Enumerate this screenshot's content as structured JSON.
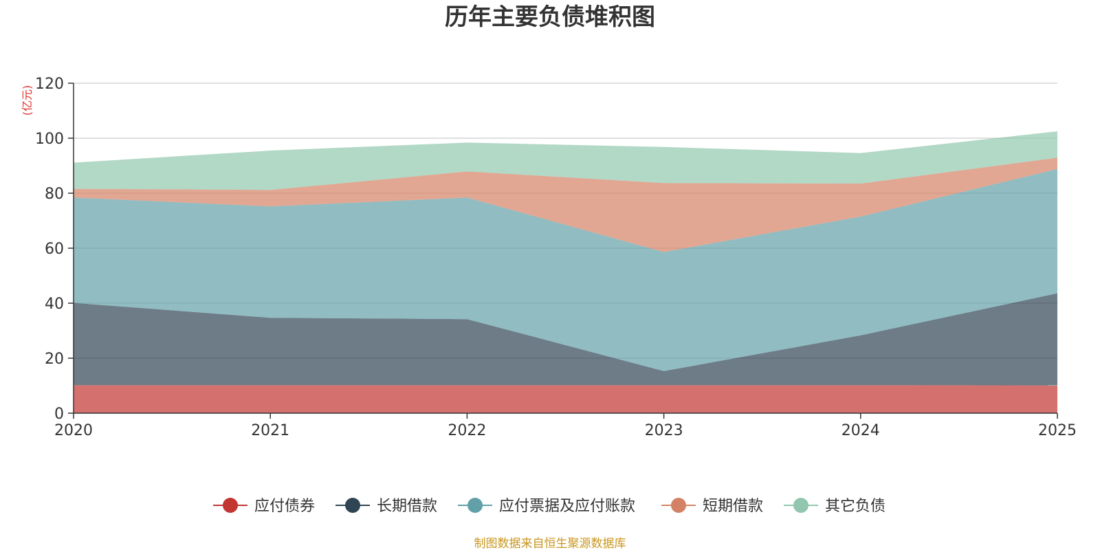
{
  "chart_data": {
    "type": "area",
    "stacked": true,
    "title": "历年主要负债堆积图",
    "unit_label": "(亿元)",
    "x": [
      "2020",
      "2021",
      "2022",
      "2023",
      "2024",
      "2025"
    ],
    "ylim": [
      0,
      120
    ],
    "yticks": [
      0,
      20,
      40,
      60,
      80,
      100,
      120
    ],
    "grid": true,
    "legend_position": "bottom",
    "series": [
      {
        "name": "应付债券",
        "color": "#c23531",
        "values": [
          10.2,
          10.2,
          10.2,
          10.2,
          10.2,
          10.1
        ]
      },
      {
        "name": "长期借款",
        "color": "#2f4554",
        "values": [
          29.9,
          24.5,
          24.0,
          5.1,
          18.1,
          33.5
        ]
      },
      {
        "name": "应付票据及应付账款",
        "color": "#61a0a8",
        "values": [
          38.3,
          40.5,
          44.2,
          43.3,
          43.2,
          45.2
        ]
      },
      {
        "name": "短期借款",
        "color": "#d48265",
        "values": [
          3.2,
          6.0,
          9.5,
          25.1,
          12.0,
          4.1
        ]
      },
      {
        "name": "其它负债",
        "color": "#91c7ae",
        "values": [
          9.5,
          14.3,
          10.5,
          13.1,
          11.1,
          9.6
        ]
      }
    ],
    "source": "制图数据来自恒生聚源数据库"
  }
}
